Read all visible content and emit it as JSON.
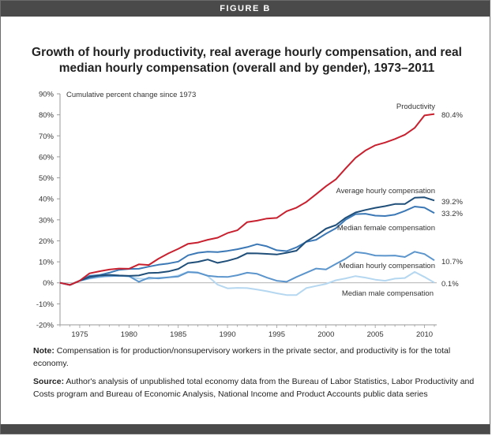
{
  "header": {
    "label": "FIGURE B"
  },
  "chart_data": {
    "type": "line",
    "title": "Growth of hourly productivity, real average hourly compensation, and real median hourly compensation (overall and by gender), 1973–2011",
    "ylabel": "Cumulative percent change since 1973",
    "xlim": [
      1973,
      2011
    ],
    "ylim": [
      -20,
      90
    ],
    "x_ticks": [
      "1975",
      "1980",
      "1985",
      "1990",
      "1995",
      "2000",
      "2005",
      "2010"
    ],
    "y_ticks": [
      "90%",
      "80%",
      "70%",
      "60%",
      "50%",
      "40%",
      "30%",
      "20%",
      "10%",
      "0%",
      "-10%",
      "-20%"
    ],
    "grid": false,
    "x": [
      1973,
      1974,
      1975,
      1976,
      1977,
      1978,
      1979,
      1980,
      1981,
      1982,
      1983,
      1984,
      1985,
      1986,
      1987,
      1988,
      1989,
      1990,
      1991,
      1992,
      1993,
      1994,
      1995,
      1996,
      1997,
      1998,
      1999,
      2000,
      2001,
      2002,
      2003,
      2004,
      2005,
      2006,
      2007,
      2008,
      2009,
      2010,
      2011
    ],
    "series": [
      {
        "name": "Productivity",
        "end_label": "80.4%",
        "color": "#c8202e",
        "values": [
          0,
          -1,
          1,
          4.5,
          5.5,
          6.3,
          6.8,
          6.7,
          8.8,
          8.5,
          11.5,
          14.0,
          16.2,
          18.6,
          19.2,
          20.5,
          21.5,
          23.7,
          25.0,
          28.9,
          29.6,
          30.6,
          30.9,
          34.1,
          35.8,
          38.5,
          42.2,
          46.0,
          49.3,
          54.5,
          59.5,
          63.0,
          65.5,
          66.8,
          68.5,
          70.5,
          73.8,
          79.7,
          80.4
        ]
      },
      {
        "name": "Average hourly compensation",
        "end_label": "39.2%",
        "color": "#1f4e79",
        "values": [
          0,
          -1,
          1,
          2.8,
          3.5,
          3.8,
          3.5,
          3.3,
          3.5,
          4.7,
          4.8,
          5.4,
          6.6,
          9.4,
          10.0,
          11.1,
          9.5,
          10.5,
          11.8,
          14.1,
          14.0,
          13.8,
          13.5,
          14.3,
          15.3,
          19.7,
          22.5,
          25.8,
          27.5,
          31.0,
          33.5,
          34.7,
          35.7,
          36.5,
          37.5,
          37.5,
          40.5,
          40.7,
          39.2
        ]
      },
      {
        "name": "Median female compensation",
        "end_label": "33.2%",
        "color": "#3b78b5",
        "values": [
          0,
          -1,
          1,
          3.3,
          3.7,
          4.8,
          6.2,
          6.6,
          6.7,
          7.7,
          8.6,
          9.2,
          10.1,
          13.1,
          14.3,
          14.8,
          14.6,
          15.2,
          16.0,
          17.0,
          18.4,
          17.4,
          15.5,
          15.1,
          16.9,
          19.5,
          20.5,
          23.4,
          26.0,
          30.1,
          32.7,
          32.9,
          32.0,
          31.8,
          32.5,
          34.2,
          36.3,
          35.8,
          33.2
        ]
      },
      {
        "name": "Median hourly compensation",
        "end_label": "10.7%",
        "color": "#5b95cc",
        "values": [
          0,
          -1,
          1,
          2.2,
          3.0,
          3.2,
          3.3,
          3.2,
          0.5,
          2.4,
          2.1,
          2.6,
          3.0,
          5.1,
          4.8,
          3.4,
          2.9,
          2.8,
          3.6,
          4.8,
          4.3,
          2.5,
          1.0,
          0.5,
          2.8,
          4.8,
          6.8,
          6.4,
          9.0,
          11.5,
          14.6,
          14.1,
          13.0,
          12.9,
          13.0,
          12.3,
          14.8,
          13.7,
          10.7
        ]
      },
      {
        "name": "Median male compensation",
        "end_label": "0.1%",
        "color": "#b5d7f0",
        "values": [
          0,
          -1,
          1,
          2.0,
          2.6,
          3.5,
          3.5,
          3.0,
          2.0,
          1.8,
          2.5,
          2.6,
          3.5,
          5.3,
          5.0,
          3.2,
          -0.9,
          -2.6,
          -2.4,
          -2.5,
          -3.2,
          -4.0,
          -5.0,
          -5.8,
          -5.8,
          -2.5,
          -1.5,
          -0.5,
          1.2,
          2.1,
          3.2,
          2.5,
          1.5,
          1.0,
          2.0,
          2.3,
          5.2,
          2.8,
          0.1
        ]
      }
    ]
  },
  "notes": {
    "note_label": "Note:",
    "note_text": " Compensation is for production/nonsupervisory workers in the private sector, and productivity is for the total economy.",
    "source_label": "Source:",
    "source_text": " Author's analysis of unpublished total economy data from the Bureau of Labor Statistics, Labor Productivity and Costs program and Bureau of Economic Analysis, National Income and Product Accounts public data series"
  }
}
